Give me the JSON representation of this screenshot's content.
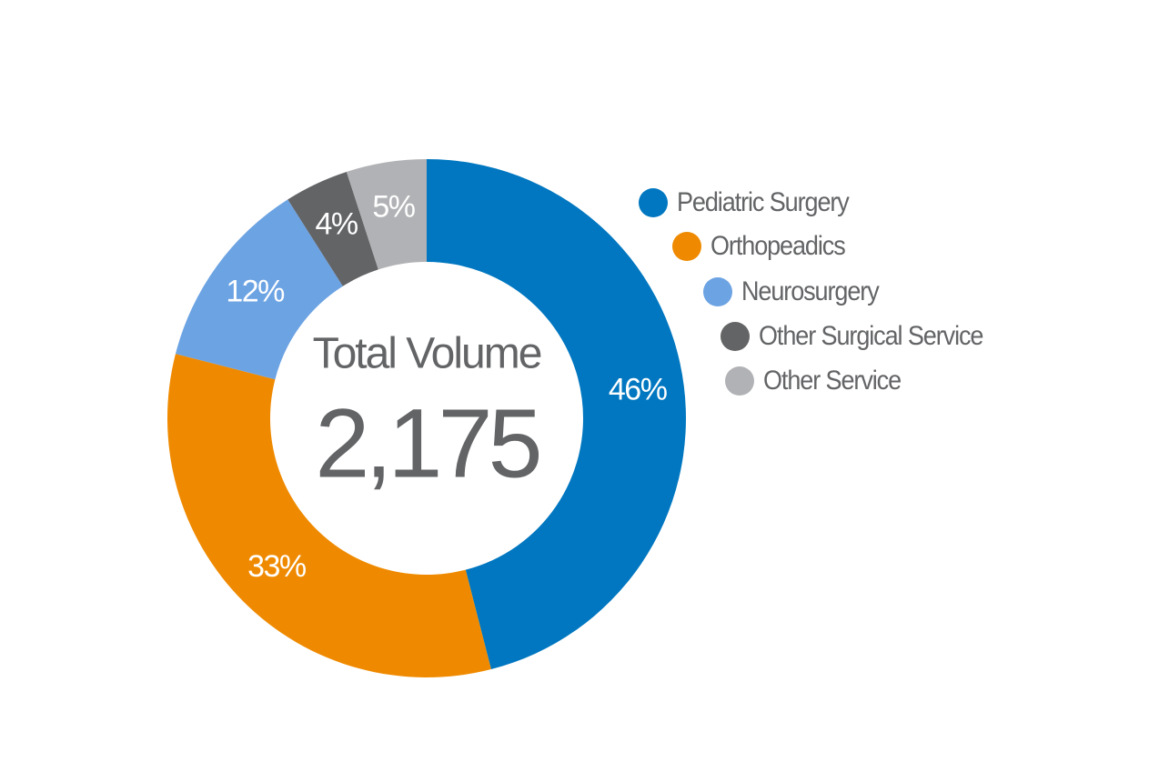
{
  "chart_data": {
    "type": "pie",
    "donut": true,
    "center_label": "Total Volume",
    "center_value": "2,175",
    "legend_placement": "right",
    "slices": [
      {
        "name": "Pediatric Surgery",
        "value": 46,
        "label": "46%",
        "color": "#0077c0"
      },
      {
        "name": "Orthopeadics",
        "value": 33,
        "label": "33%",
        "color": "#ef8a00"
      },
      {
        "name": "Neurosurgery",
        "value": 12,
        "label": "12%",
        "color": "#6ca3e3"
      },
      {
        "name": "Other Surgical Service",
        "value": 4,
        "label": "4%",
        "color": "#636466"
      },
      {
        "name": "Other Service",
        "value": 5,
        "label": "5%",
        "color": "#b1b2b5"
      }
    ],
    "text_color": "#636466"
  }
}
